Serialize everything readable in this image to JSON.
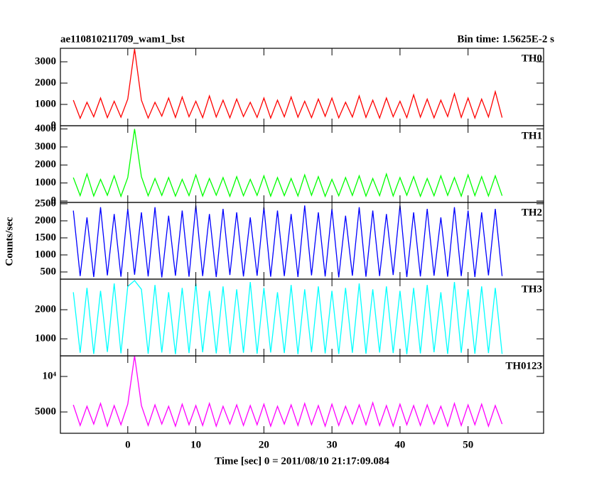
{
  "chart_data": {
    "type": "line",
    "title": "ae110810211709_wam1_bst",
    "subtitle": "Bin time: 1.5625E-2 s",
    "xlabel": "Time [sec] 0 = 2011/08/10 21:17:09.084",
    "ylabel": "Counts/sec",
    "xlim": [
      -9.9,
      61.1
    ],
    "xticks": [
      0,
      10,
      20,
      30,
      40,
      50
    ],
    "x": [
      -8,
      -7,
      -6,
      -5,
      -4,
      -3,
      -2,
      -1,
      0,
      1,
      2,
      3,
      4,
      5,
      6,
      7,
      8,
      9,
      10,
      11,
      12,
      13,
      14,
      15,
      16,
      17,
      18,
      19,
      20,
      21,
      22,
      23,
      24,
      25,
      26,
      27,
      28,
      29,
      30,
      31,
      32,
      33,
      34,
      35,
      36,
      37,
      38,
      39,
      40,
      41,
      42,
      43,
      44,
      45,
      46,
      47,
      48,
      49,
      50,
      51,
      52,
      53,
      54,
      55
    ],
    "series": [
      {
        "name": "TH0",
        "color": "#ff0000",
        "ylim": [
          0,
          3633
        ],
        "yticks": [
          0,
          1000,
          2000,
          3000
        ],
        "values": [
          1200,
          350,
          1100,
          420,
          1300,
          380,
          1150,
          400,
          1250,
          3600,
          1200,
          360,
          1100,
          450,
          1300,
          390,
          1350,
          420,
          1150,
          380,
          1400,
          410,
          1200,
          370,
          1250,
          430,
          1100,
          390,
          1300,
          360,
          1200,
          420,
          1350,
          400,
          1150,
          380,
          1250,
          440,
          1300,
          370,
          1100,
          410,
          1400,
          390,
          1200,
          360,
          1300,
          420,
          1150,
          380,
          1450,
          400,
          1250,
          370,
          1200,
          430,
          1500,
          390,
          1300,
          360,
          1250,
          410,
          1600,
          380
        ]
      },
      {
        "name": "TH1",
        "color": "#00ff00",
        "ylim": [
          -80,
          4180
        ],
        "yticks": [
          0,
          1000,
          2000,
          3000,
          4000
        ],
        "values": [
          1300,
          300,
          1500,
          280,
          1200,
          320,
          1400,
          260,
          1300,
          4000,
          1350,
          290,
          1250,
          310,
          1300,
          270,
          1200,
          300,
          1450,
          280,
          1250,
          320,
          1300,
          260,
          1350,
          290,
          1200,
          310,
          1400,
          270,
          1300,
          300,
          1250,
          280,
          1450,
          320,
          1350,
          260,
          1200,
          290,
          1300,
          310,
          1400,
          270,
          1250,
          300,
          1500,
          280,
          1300,
          320,
          1350,
          260,
          1250,
          290,
          1400,
          310,
          1300,
          270,
          1450,
          300,
          1350,
          280,
          1400,
          290
        ]
      },
      {
        "name": "TH2",
        "color": "#0000ff",
        "ylim": [
          290,
          2540
        ],
        "yticks": [
          500,
          1000,
          1500,
          2000,
          2500
        ],
        "values": [
          2300,
          380,
          2100,
          350,
          2400,
          400,
          2200,
          360,
          2350,
          420,
          2250,
          370,
          2400,
          340,
          2150,
          390,
          2300,
          360,
          2450,
          380,
          2200,
          350,
          2350,
          410,
          2250,
          370,
          2100,
          390,
          2400,
          360,
          2300,
          380,
          2200,
          350,
          2450,
          400,
          2250,
          370,
          2350,
          340,
          2150,
          390,
          2400,
          360,
          2300,
          380,
          2200,
          410,
          2450,
          350,
          2250,
          370,
          2350,
          390,
          2100,
          360,
          2400,
          380,
          2300,
          350,
          2250,
          400,
          2350,
          380
        ]
      },
      {
        "name": "TH3",
        "color": "#00ffff",
        "ylim": [
          415,
          3050
        ],
        "yticks": [
          1000,
          2000
        ],
        "values": [
          2600,
          520,
          2750,
          480,
          2650,
          550,
          2900,
          500,
          2800,
          3000,
          2700,
          490,
          2850,
          530,
          2600,
          470,
          2750,
          510,
          2900,
          540,
          2650,
          500,
          2800,
          480,
          2700,
          520,
          2950,
          490,
          2750,
          530,
          2600,
          510,
          2850,
          470,
          2700,
          540,
          2800,
          500,
          2650,
          480,
          2750,
          520,
          2900,
          490,
          2700,
          530,
          2800,
          510,
          2650,
          470,
          2750,
          500,
          2850,
          540,
          2600,
          480,
          2950,
          520,
          2700,
          490,
          2800,
          510,
          2750,
          480
        ]
      },
      {
        "name": "TH0123",
        "color": "#ff00ff",
        "ylim": [
          2000,
          12900
        ],
        "yticks": [
          5000,
          {
            "value": 10000,
            "label": "10⁴"
          }
        ],
        "values": [
          6000,
          3100,
          5800,
          3300,
          6200,
          3000,
          5900,
          3200,
          6100,
          12900,
          5900,
          3100,
          6000,
          3300,
          5800,
          3000,
          6100,
          3200,
          5900,
          3100,
          6200,
          3000,
          5800,
          3300,
          6000,
          3100,
          5900,
          3200,
          6100,
          3000,
          5800,
          3300,
          6000,
          3100,
          6200,
          3200,
          5900,
          3000,
          6100,
          3100,
          5800,
          3300,
          6000,
          3200,
          6300,
          3100,
          5900,
          3000,
          6100,
          3200,
          5900,
          3100,
          6000,
          3300,
          5800,
          3000,
          6200,
          3100,
          6000,
          3200,
          6100,
          3000,
          5900,
          3300
        ]
      }
    ]
  }
}
